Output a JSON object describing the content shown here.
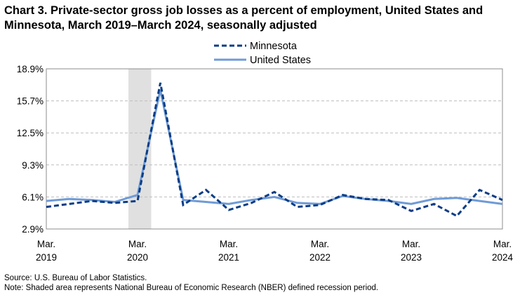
{
  "chart_data": {
    "type": "line",
    "title": "Chart 3. Private-sector gross job losses as a percent of employment, United States and Minnesota, March 2019–March 2024, seasonally adjusted",
    "xlabel": "",
    "ylabel": "",
    "y_ticks": [
      "18.9%",
      "15.7%",
      "12.5%",
      "9.3%",
      "6.1%",
      "2.9%"
    ],
    "y_tick_values": [
      18.9,
      15.7,
      12.5,
      9.3,
      6.1,
      2.9
    ],
    "ylim": [
      2.9,
      18.9
    ],
    "x_ticks": [
      {
        "month": "Mar.",
        "year": "2019",
        "index": 0
      },
      {
        "month": "Mar.",
        "year": "2020",
        "index": 4
      },
      {
        "month": "Mar.",
        "year": "2021",
        "index": 8
      },
      {
        "month": "Mar.",
        "year": "2022",
        "index": 12
      },
      {
        "month": "Mar.",
        "year": "2023",
        "index": 16
      },
      {
        "month": "Mar.",
        "year": "2024",
        "index": 20
      }
    ],
    "x": [
      "Mar. 2019",
      "Jun. 2019",
      "Sep. 2019",
      "Dec. 2019",
      "Mar. 2020",
      "Jun. 2020",
      "Sep. 2020",
      "Dec. 2020",
      "Mar. 2021",
      "Jun. 2021",
      "Sep. 2021",
      "Dec. 2021",
      "Mar. 2022",
      "Jun. 2022",
      "Sep. 2022",
      "Dec. 2022",
      "Mar. 2023",
      "Jun. 2023",
      "Sep. 2023",
      "Dec. 2023",
      "Mar. 2024"
    ],
    "recession": {
      "start_index": 3.6,
      "end_index": 4.6
    },
    "grid": true,
    "legend_position": "top-center",
    "series": [
      {
        "name": "Minnesota",
        "style": "dashed",
        "color": "#0b3d85",
        "values": [
          5.1,
          5.4,
          5.7,
          5.5,
          5.7,
          17.5,
          5.3,
          6.8,
          4.8,
          5.5,
          6.6,
          5.1,
          5.3,
          6.3,
          5.9,
          5.8,
          4.7,
          5.4,
          4.2,
          6.8,
          5.8
        ]
      },
      {
        "name": "United States",
        "style": "solid",
        "color": "#6f9bd6",
        "values": [
          5.7,
          5.9,
          5.8,
          5.6,
          6.3,
          16.8,
          5.8,
          5.6,
          5.4,
          5.8,
          6.1,
          5.5,
          5.4,
          6.2,
          5.9,
          5.7,
          5.4,
          5.9,
          6.0,
          5.7,
          5.4
        ]
      }
    ]
  },
  "footnotes": {
    "source": "Source: U.S. Bureau of Labor Statistics.",
    "note": "Note: Shaded area represents National Bureau of Economic Research (NBER) defined recession period."
  }
}
